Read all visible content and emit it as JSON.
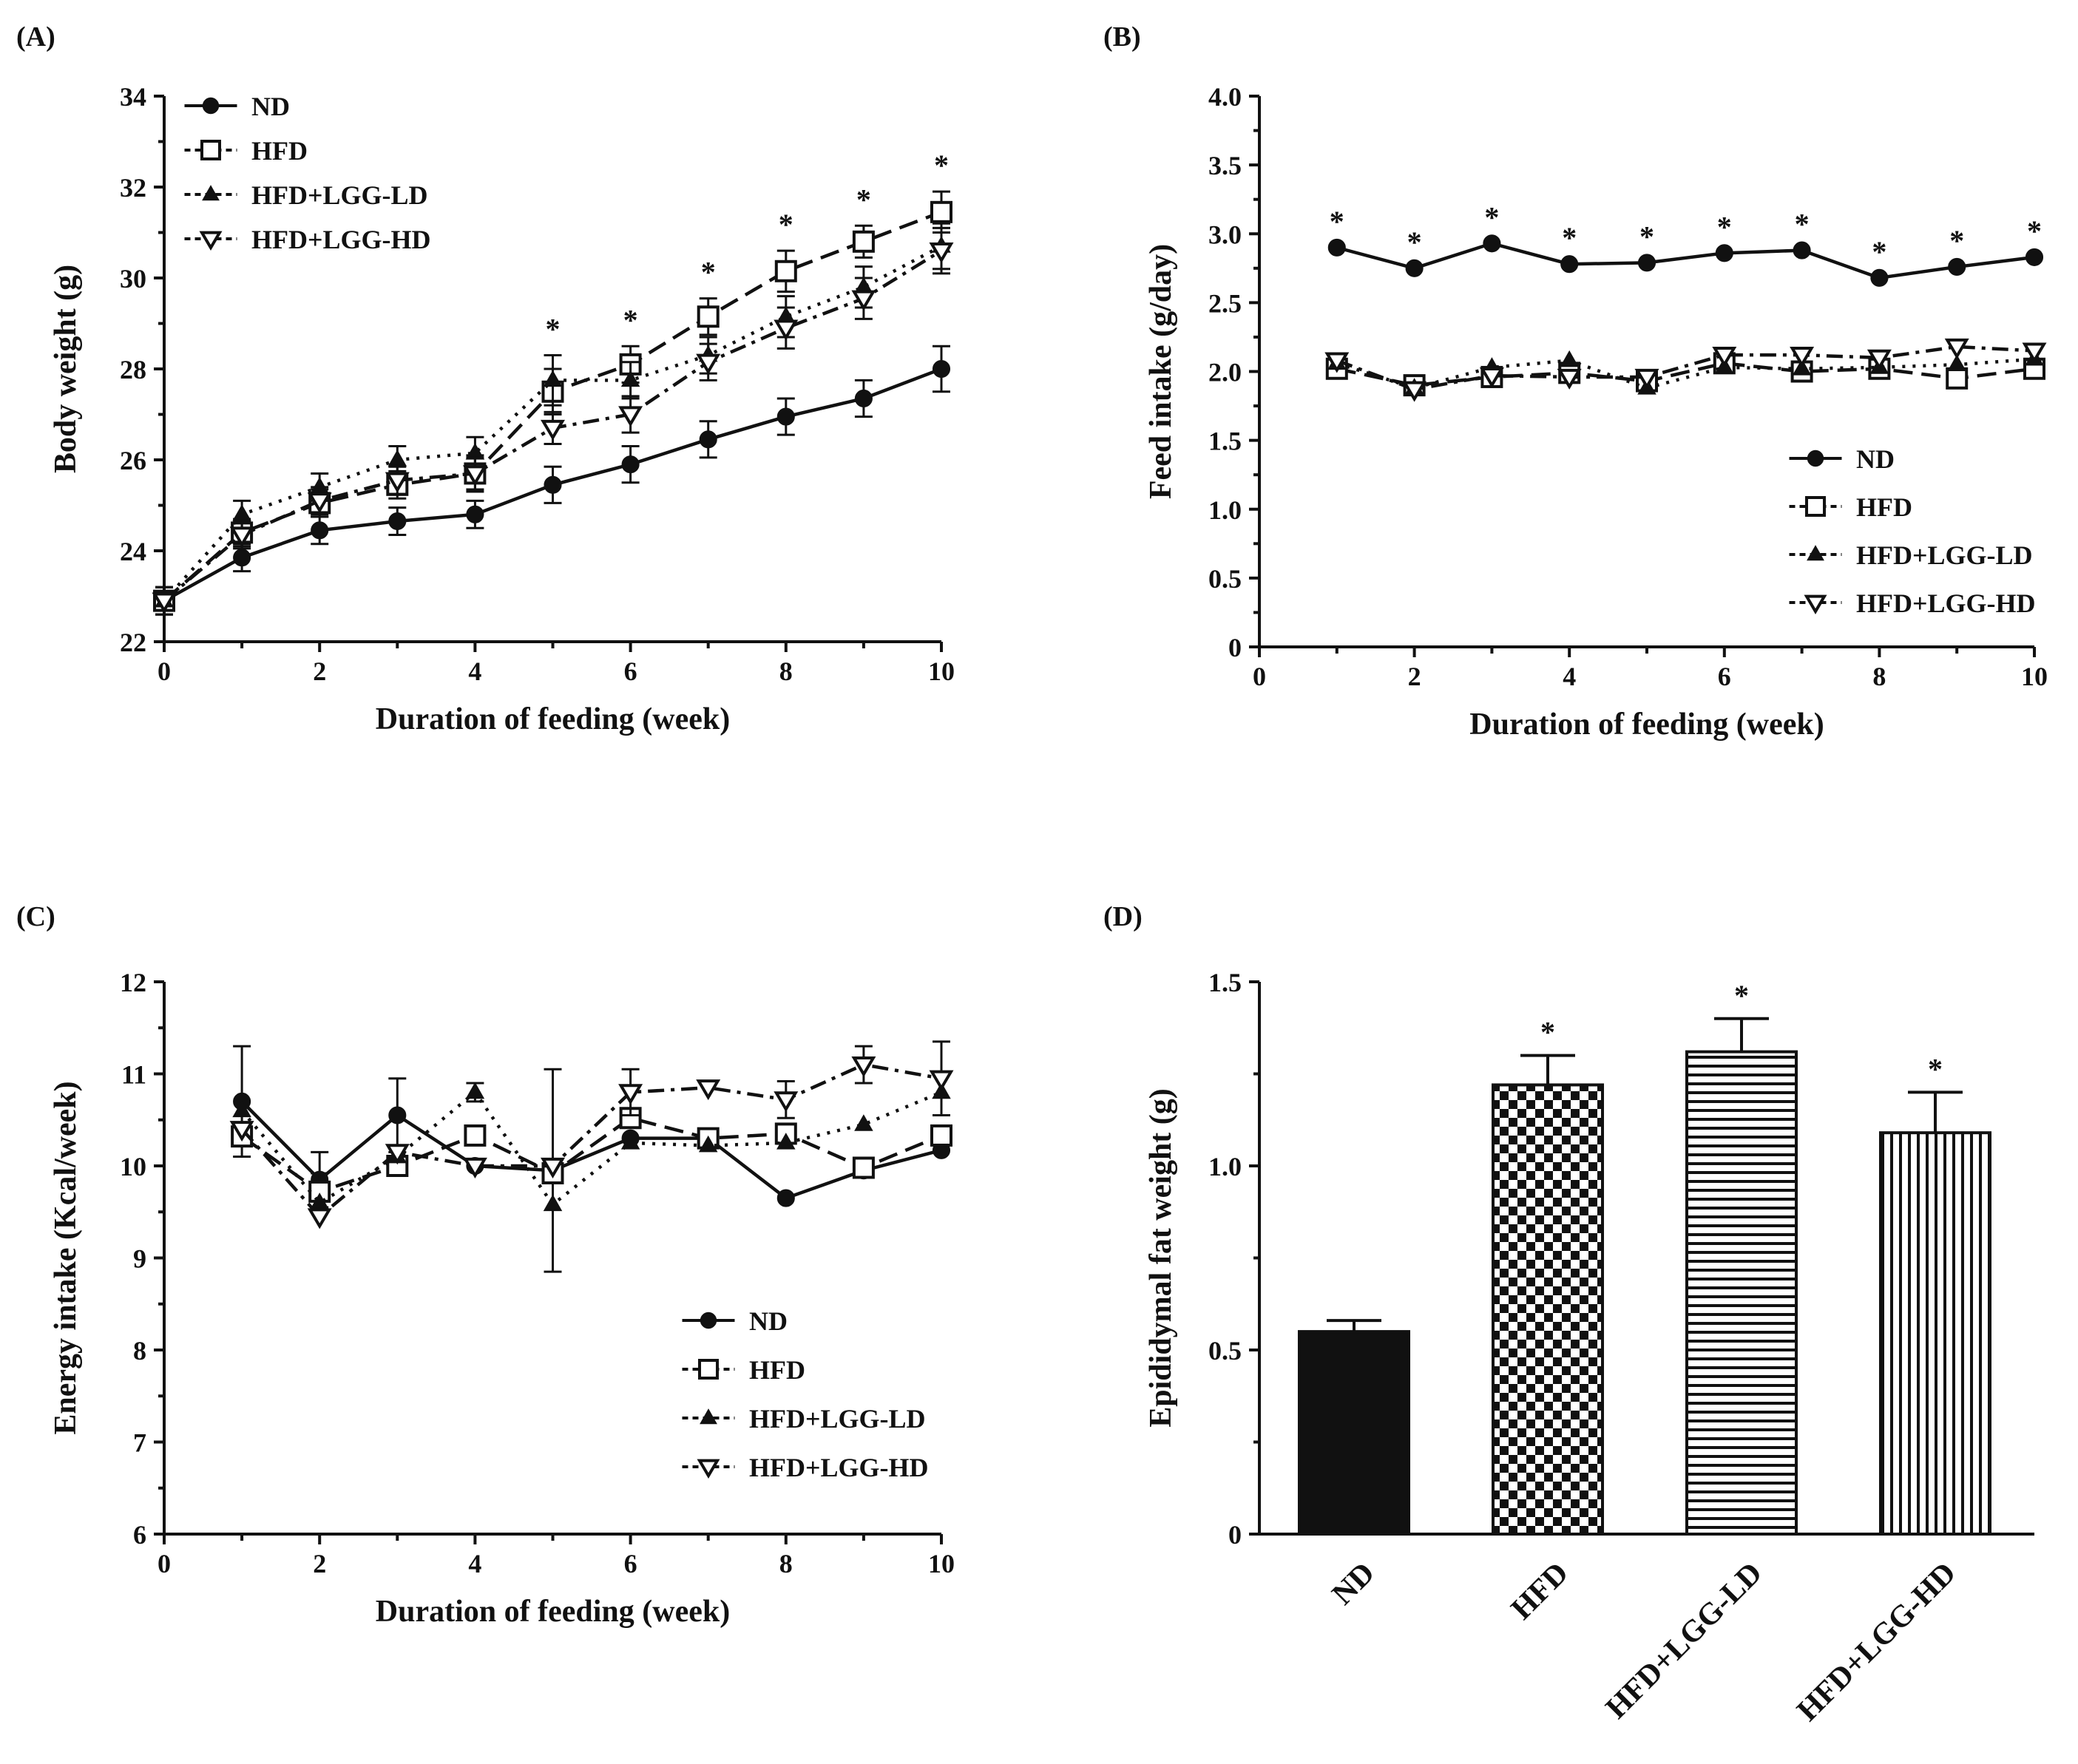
{
  "chart_data": [
    {
      "id": "A",
      "panel_label": "(A)",
      "type": "line",
      "xlabel": "Duration of feeding (week)",
      "ylabel": "Body weight (g)",
      "xlim": [
        0,
        10
      ],
      "ylim": [
        22,
        34
      ],
      "xticks": [
        0,
        2,
        4,
        6,
        8,
        10
      ],
      "yticks": [
        22,
        24,
        26,
        28,
        30,
        32,
        34
      ],
      "ytick_labels": [
        "22",
        "24",
        "26",
        "28",
        "30",
        "32",
        "34"
      ],
      "x": [
        0,
        1,
        2,
        3,
        4,
        5,
        6,
        7,
        8,
        9,
        10
      ],
      "legend_position": "top-left",
      "series": [
        {
          "name": "ND",
          "marker": "circle",
          "dash": "solid",
          "values": [
            22.9,
            23.85,
            24.45,
            24.65,
            24.8,
            25.45,
            25.9,
            26.45,
            26.95,
            27.35,
            28.0
          ],
          "errors": [
            0.3,
            0.3,
            0.3,
            0.3,
            0.3,
            0.4,
            0.4,
            0.4,
            0.4,
            0.4,
            0.5
          ]
        },
        {
          "name": "HFD",
          "marker": "square-open",
          "dash": "longdash",
          "values": [
            22.9,
            24.4,
            25.05,
            25.45,
            25.7,
            27.5,
            28.1,
            29.15,
            30.15,
            30.8,
            31.45
          ],
          "errors": [
            0.3,
            0.3,
            0.3,
            0.3,
            0.4,
            0.5,
            0.4,
            0.4,
            0.45,
            0.35,
            0.45
          ]
        },
        {
          "name": "HFD+LGG-LD",
          "marker": "triangle",
          "dash": "dotted",
          "values": [
            22.9,
            24.8,
            25.4,
            26.0,
            26.15,
            27.75,
            27.75,
            28.3,
            29.15,
            29.8,
            30.7
          ],
          "errors": [
            0.3,
            0.3,
            0.3,
            0.3,
            0.35,
            0.55,
            0.4,
            0.4,
            0.45,
            0.45,
            0.5
          ]
        },
        {
          "name": "HFD+LGG-HD",
          "marker": "triangle-down-open",
          "dash": "dashdot",
          "values": [
            22.9,
            24.35,
            25.1,
            25.55,
            25.7,
            26.7,
            27.0,
            28.15,
            28.9,
            29.55,
            30.6
          ],
          "errors": [
            0.3,
            0.3,
            0.3,
            0.3,
            0.35,
            0.35,
            0.4,
            0.4,
            0.45,
            0.45,
            0.5
          ]
        }
      ],
      "significance_marker": "*",
      "significance_x": [
        5,
        6,
        7,
        8,
        9,
        10
      ]
    },
    {
      "id": "B",
      "panel_label": "(B)",
      "type": "line",
      "xlabel": "Duration of feeding (week)",
      "ylabel": "Feed intake (g/day)",
      "xlim": [
        0,
        10
      ],
      "ylim": [
        0,
        4.0
      ],
      "xticks": [
        0,
        2,
        4,
        6,
        8,
        10
      ],
      "yticks": [
        0,
        0.5,
        1.0,
        1.5,
        2.0,
        2.5,
        3.0,
        3.5,
        4.0
      ],
      "ytick_labels": [
        "0",
        "0.5",
        "1.0",
        "1.5",
        "2.0",
        "2.5",
        "3.0",
        "3.5",
        "4.0"
      ],
      "x": [
        1,
        2,
        3,
        4,
        5,
        6,
        7,
        8,
        9,
        10
      ],
      "legend_position": "bottom-right",
      "series": [
        {
          "name": "ND",
          "marker": "circle",
          "dash": "solid",
          "values": [
            2.9,
            2.75,
            2.93,
            2.78,
            2.79,
            2.86,
            2.88,
            2.68,
            2.76,
            2.83
          ],
          "errors": []
        },
        {
          "name": "HFD",
          "marker": "square-open",
          "dash": "longdash",
          "values": [
            2.02,
            1.9,
            1.96,
            1.99,
            1.93,
            2.06,
            2.0,
            2.02,
            1.95,
            2.02
          ],
          "errors": []
        },
        {
          "name": "HFD+LGG-LD",
          "marker": "triangle",
          "dash": "dotted",
          "values": [
            2.06,
            1.88,
            2.03,
            2.08,
            1.88,
            2.03,
            2.02,
            2.03,
            2.05,
            2.09
          ],
          "errors": []
        },
        {
          "name": "HFD+LGG-HD",
          "marker": "triangle-down-open",
          "dash": "dashdot",
          "values": [
            2.08,
            1.87,
            1.97,
            1.96,
            1.96,
            2.12,
            2.12,
            2.1,
            2.18,
            2.15
          ],
          "errors": []
        }
      ],
      "significance_marker": "*",
      "significance_x": [
        1,
        2,
        3,
        4,
        5,
        6,
        7,
        8,
        9,
        10
      ]
    },
    {
      "id": "C",
      "panel_label": "(C)",
      "type": "line",
      "xlabel": "Duration of feeding (week)",
      "ylabel": "Energy intake (Kcal/week)",
      "xlim": [
        0,
        10
      ],
      "ylim": [
        6,
        12
      ],
      "xticks": [
        0,
        2,
        4,
        6,
        8,
        10
      ],
      "yticks": [
        6,
        7,
        8,
        9,
        10,
        11,
        12
      ],
      "ytick_labels": [
        "6",
        "7",
        "8",
        "9",
        "10",
        "11",
        "12"
      ],
      "x": [
        1,
        2,
        3,
        4,
        5,
        6,
        7,
        8,
        9,
        10
      ],
      "legend_position": "bottom-right",
      "series": [
        {
          "name": "ND",
          "marker": "circle",
          "dash": "solid",
          "values": [
            10.7,
            9.85,
            10.55,
            10.0,
            9.95,
            10.3,
            10.3,
            9.65,
            9.95,
            10.17
          ],
          "errors": [
            0.6,
            0.3,
            0.4,
            0,
            1.1,
            0,
            0,
            0,
            0,
            0
          ]
        },
        {
          "name": "HFD",
          "marker": "square-open",
          "dash": "longdash",
          "values": [
            10.32,
            9.72,
            10.0,
            10.33,
            9.92,
            10.52,
            10.3,
            10.35,
            9.98,
            10.33
          ],
          "errors": [
            0,
            0.2,
            0,
            0.1,
            0,
            0.1,
            0,
            0,
            0.1,
            0.1
          ]
        },
        {
          "name": "HFD+LGG-LD",
          "marker": "triangle",
          "dash": "dotted",
          "values": [
            10.6,
            9.6,
            10.1,
            10.8,
            9.58,
            10.25,
            10.22,
            10.25,
            10.45,
            10.8
          ],
          "errors": [
            0,
            0,
            0,
            0.1,
            0,
            0,
            0,
            0,
            0,
            0
          ]
        },
        {
          "name": "HFD+LGG-HD",
          "marker": "triangle-down-open",
          "dash": "dashdot",
          "values": [
            10.4,
            9.45,
            10.15,
            10.0,
            10.0,
            10.8,
            10.85,
            10.72,
            11.1,
            10.95
          ],
          "errors": [
            0,
            0,
            0,
            0,
            0,
            0.25,
            0,
            0.2,
            0.2,
            0.4
          ]
        }
      ]
    },
    {
      "id": "D",
      "panel_label": "(D)",
      "type": "bar",
      "xlabel": "",
      "ylabel": "Epididymal fat weight (g)",
      "ylim": [
        0,
        1.5
      ],
      "yticks": [
        0,
        0.5,
        1.0,
        1.5
      ],
      "ytick_labels": [
        "0",
        "0.5",
        "1.0",
        "1.5"
      ],
      "categories": [
        "ND",
        "HFD",
        "HFD+LGG-LD",
        "HFD+LGG-HD"
      ],
      "values": [
        0.55,
        1.22,
        1.31,
        1.09
      ],
      "errors": [
        0.03,
        0.08,
        0.09,
        0.11
      ],
      "patterns": [
        "solid",
        "checker",
        "horizontal-lines",
        "vertical-lines"
      ],
      "significance": [
        "",
        "*",
        "*",
        "*"
      ]
    }
  ]
}
